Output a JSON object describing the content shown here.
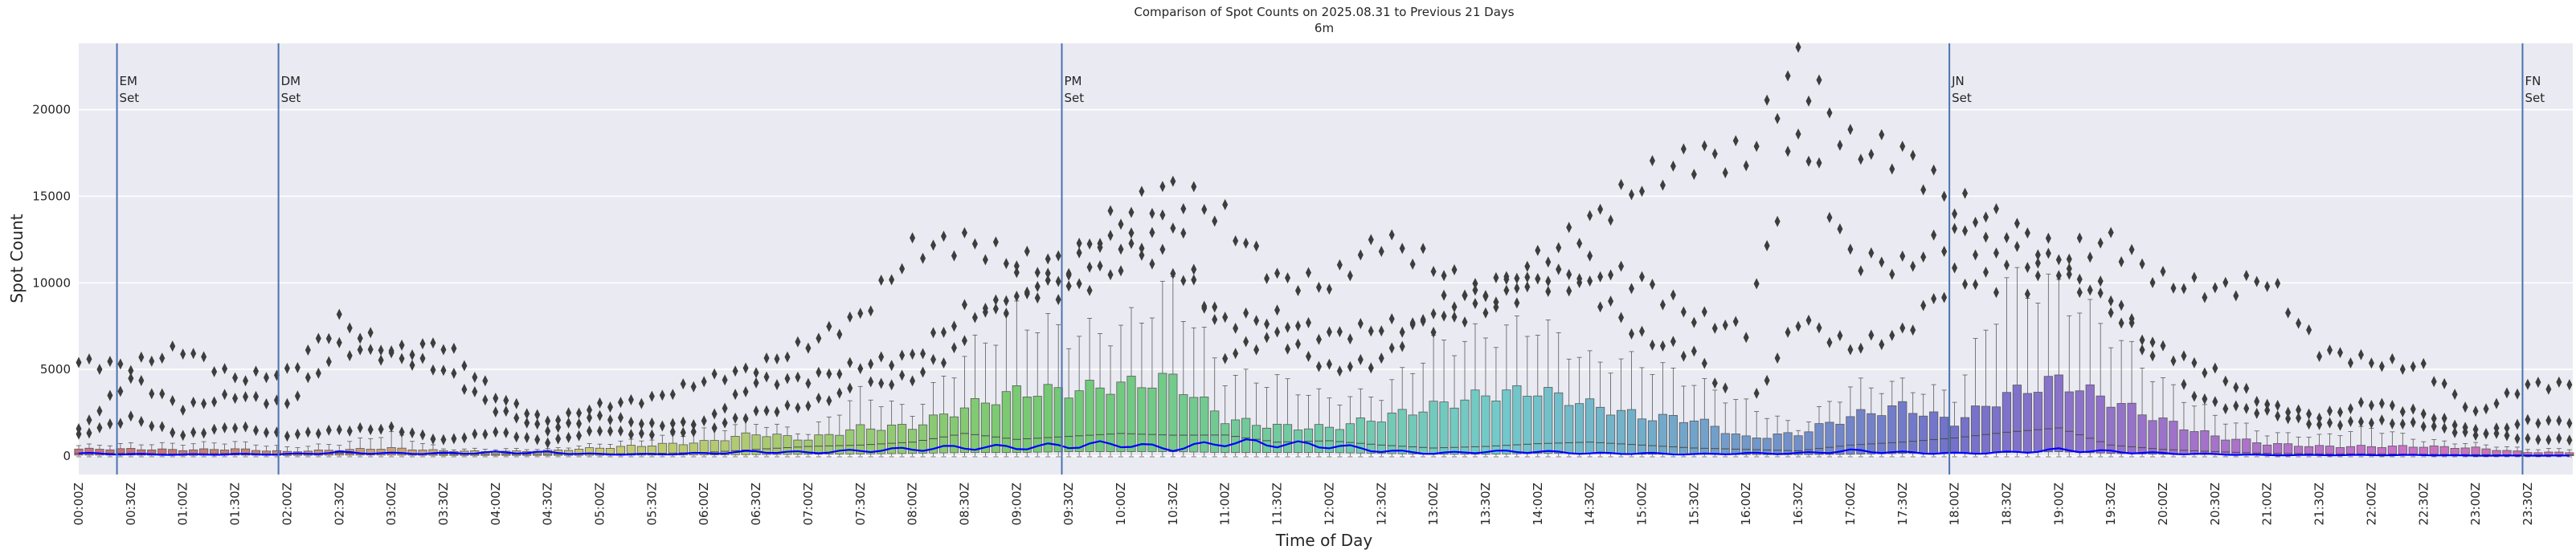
{
  "chart_data": {
    "type": "box",
    "title": "Comparison of Spot Counts on 2025.08.31 to Previous 21 Days",
    "subtitle": "6m",
    "xlabel": "Time of Day",
    "ylabel": "Spot Count",
    "ylim": [
      -1070,
      23830
    ],
    "y_ticks": [
      0,
      5000,
      10000,
      15000,
      20000
    ],
    "y_tick_labels": [
      "0",
      "5000",
      "10000",
      "15000",
      "20000"
    ],
    "bin_minutes": 6,
    "grid": "horizontal",
    "background": "#eaeaf2",
    "palette": "husl",
    "today_line_color": "#0000ff",
    "vline_color": "#4c72b0",
    "outlier_color": "#3d3d3d",
    "x_ticks": [
      "00:00Z",
      "00:30Z",
      "01:00Z",
      "01:30Z",
      "02:00Z",
      "02:30Z",
      "03:00Z",
      "03:30Z",
      "04:00Z",
      "04:30Z",
      "05:00Z",
      "05:30Z",
      "06:00Z",
      "06:30Z",
      "07:00Z",
      "07:30Z",
      "08:00Z",
      "08:30Z",
      "09:00Z",
      "09:30Z",
      "10:00Z",
      "10:30Z",
      "11:00Z",
      "11:30Z",
      "12:00Z",
      "12:30Z",
      "13:00Z",
      "13:30Z",
      "14:00Z",
      "14:30Z",
      "15:00Z",
      "15:30Z",
      "16:00Z",
      "16:30Z",
      "17:00Z",
      "17:30Z",
      "18:00Z",
      "18:30Z",
      "19:00Z",
      "19:30Z",
      "20:00Z",
      "20:30Z",
      "21:00Z",
      "21:30Z",
      "22:00Z",
      "22:30Z",
      "23:00Z",
      "23:30Z"
    ],
    "vlines": [
      {
        "at": "00:22Z",
        "label": [
          "EM",
          "Set"
        ]
      },
      {
        "at": "01:55Z",
        "label": [
          "DM",
          "Set"
        ]
      },
      {
        "at": "09:26Z",
        "label": [
          "PM",
          "Set"
        ]
      },
      {
        "at": "17:57Z",
        "label": [
          "JN",
          "Set"
        ]
      },
      {
        "at": "23:27Z",
        "label": [
          "FN",
          "Set"
        ]
      }
    ],
    "stats": [
      {
        "time": "00:00Z",
        "q1": 50,
        "median": 150,
        "q3": 400,
        "whisker_high": 600,
        "outliers": [
          5400,
          1500,
          1200
        ],
        "today": 150
      },
      {
        "time": "00:30Z",
        "q1": 50,
        "median": 150,
        "q3": 400,
        "whisker_high": 700,
        "outliers": [
          5200,
          4500,
          2200
        ],
        "today": 100
      },
      {
        "time": "01:00Z",
        "q1": 30,
        "median": 100,
        "q3": 350,
        "whisker_high": 700,
        "outliers": [
          6200,
          2800,
          1200
        ],
        "today": 80
      },
      {
        "time": "01:30Z",
        "q1": 50,
        "median": 150,
        "q3": 400,
        "whisker_high": 800,
        "outliers": [
          4500,
          3500,
          1700
        ],
        "today": 100
      },
      {
        "time": "02:00Z",
        "q1": 30,
        "median": 100,
        "q3": 250,
        "whisker_high": 500,
        "outliers": [
          4800,
          3000,
          1200
        ],
        "today": 100
      },
      {
        "time": "02:30Z",
        "q1": 50,
        "median": 150,
        "q3": 350,
        "whisker_high": 700,
        "outliers": [
          7800,
          6200,
          1500
        ],
        "today": 200
      },
      {
        "time": "03:00Z",
        "q1": 50,
        "median": 150,
        "q3": 450,
        "whisker_high": 1300,
        "outliers": [
          6000,
          5800,
          1600
        ],
        "today": 150
      },
      {
        "time": "03:30Z",
        "q1": 30,
        "median": 100,
        "q3": 300,
        "whisker_high": 400,
        "outliers": [
          6500,
          5000,
          900
        ],
        "today": 150
      },
      {
        "time": "04:00Z",
        "q1": 30,
        "median": 100,
        "q3": 250,
        "whisker_high": 400,
        "outliers": [
          3500,
          2700,
          1400
        ],
        "today": 200
      },
      {
        "time": "04:30Z",
        "q1": 30,
        "median": 100,
        "q3": 300,
        "whisker_high": 400,
        "outliers": [
          2000,
          1500,
          800
        ],
        "today": 200
      },
      {
        "time": "05:00Z",
        "q1": 40,
        "median": 120,
        "q3": 460,
        "whisker_high": 700,
        "outliers": [
          2900,
          2300,
          1500
        ],
        "today": 100
      },
      {
        "time": "05:30Z",
        "q1": 50,
        "median": 150,
        "q3": 630,
        "whisker_high": 1000,
        "outliers": [
          3300,
          1800,
          1200
        ],
        "today": 100
      },
      {
        "time": "06:00Z",
        "q1": 60,
        "median": 200,
        "q3": 800,
        "whisker_high": 1450,
        "outliers": [
          4350,
          1950,
          1500
        ],
        "today": 150
      },
      {
        "time": "06:30Z",
        "q1": 80,
        "median": 380,
        "q3": 1300,
        "whisker_high": 1950,
        "outliers": [
          5100,
          4300,
          2500
        ],
        "today": 250
      },
      {
        "time": "07:00Z",
        "q1": 100,
        "median": 550,
        "q3": 960,
        "whisker_high": 1300,
        "outliers": [
          6500,
          4450,
          2950
        ],
        "today": 200
      },
      {
        "time": "07:30Z",
        "q1": 120,
        "median": 630,
        "q3": 1620,
        "whisker_high": 3600,
        "outliers": [
          8100,
          5250,
          4000
        ],
        "today": 300
      },
      {
        "time": "08:00Z",
        "q1": 150,
        "median": 800,
        "q3": 1700,
        "whisker_high": 2530,
        "outliers": [
          11900,
          5760,
          4500
        ],
        "today": 400
      },
      {
        "time": "08:30Z",
        "q1": 200,
        "median": 1300,
        "q3": 2780,
        "whisker_high": 5760,
        "outliers": [
          12400,
          8250,
          6500
        ],
        "today": 500
      },
      {
        "time": "09:00Z",
        "q1": 200,
        "median": 960,
        "q3": 3700,
        "whisker_high": 8160,
        "outliers": [
          11200,
          8900,
          10000
        ],
        "today": 500
      },
      {
        "time": "09:30Z",
        "q1": 250,
        "median": 1130,
        "q3": 3780,
        "whisker_high": 7000,
        "outliers": [
          11200,
          10700,
          9500
        ],
        "today": 600
      },
      {
        "time": "10:00Z",
        "q1": 250,
        "median": 1300,
        "q3": 4100,
        "whisker_high": 7250,
        "outliers": [
          13900,
          12700,
          11000
        ],
        "today": 700
      },
      {
        "time": "10:30Z",
        "q1": 250,
        "median": 1200,
        "q3": 4440,
        "whisker_high": 9740,
        "outliers": [
          15500,
          10900,
          14000
        ],
        "today": 400
      },
      {
        "time": "11:00Z",
        "q1": 200,
        "median": 1210,
        "q3": 2120,
        "whisker_high": 4600,
        "outliers": [
          13700,
          7800,
          5800
        ],
        "today": 800
      },
      {
        "time": "11:30Z",
        "q1": 200,
        "median": 800,
        "q3": 1700,
        "whisker_high": 4350,
        "outliers": [
          10200,
          7950,
          6950
        ],
        "today": 700
      },
      {
        "time": "12:00Z",
        "q1": 200,
        "median": 880,
        "q3": 1620,
        "whisker_high": 3270,
        "outliers": [
          9900,
          6950,
          5000
        ],
        "today": 600
      },
      {
        "time": "12:30Z",
        "q1": 150,
        "median": 630,
        "q3": 2200,
        "whisker_high": 3600,
        "outliers": [
          12570,
          7450,
          5500
        ],
        "today": 300
      },
      {
        "time": "13:00Z",
        "q1": 100,
        "median": 460,
        "q3": 2860,
        "whisker_high": 6300,
        "outliers": [
          11000,
          7600,
          8500
        ],
        "today": 150
      },
      {
        "time": "13:30Z",
        "q1": 100,
        "median": 550,
        "q3": 3540,
        "whisker_high": 6950,
        "outliers": [
          9000,
          8500,
          9800
        ],
        "today": 250
      },
      {
        "time": "14:00Z",
        "q1": 150,
        "median": 710,
        "q3": 3780,
        "whisker_high": 7600,
        "outliers": [
          11200,
          9900,
          10500
        ],
        "today": 250
      },
      {
        "time": "14:30Z",
        "q1": 150,
        "median": 800,
        "q3": 2950,
        "whisker_high": 5430,
        "outliers": [
          13500,
          10900,
          9750
        ],
        "today": 150
      },
      {
        "time": "15:00Z",
        "q1": 100,
        "median": 630,
        "q3": 2280,
        "whisker_high": 5430,
        "outliers": [
          15800,
          10100,
          6800
        ],
        "today": 150
      },
      {
        "time": "15:30Z",
        "q1": 100,
        "median": 460,
        "q3": 2120,
        "whisker_high": 4270,
        "outliers": [
          17300,
          8000,
          5930
        ],
        "today": 100
      },
      {
        "time": "16:00Z",
        "q1": 80,
        "median": 380,
        "q3": 1040,
        "whisker_high": 2950,
        "outliers": [
          17200,
          7280,
          2280
        ],
        "today": 150
      },
      {
        "time": "16:30Z",
        "q1": 80,
        "median": 300,
        "q3": 1290,
        "whisker_high": 1620,
        "outliers": [
          22800,
          19000,
          7950
        ],
        "today": 150
      },
      {
        "time": "17:00Z",
        "q1": 100,
        "median": 630,
        "q3": 2280,
        "whisker_high": 4000,
        "outliers": [
          17800,
          11500,
          6250
        ],
        "today": 300
      },
      {
        "time": "17:30Z",
        "q1": 150,
        "median": 800,
        "q3": 2860,
        "whisker_high": 4100,
        "outliers": [
          17500,
          10900,
          7100
        ],
        "today": 200
      },
      {
        "time": "18:00Z",
        "q1": 150,
        "median": 1040,
        "q3": 1950,
        "whisker_high": 3500,
        "outliers": [
          14540,
          12900,
          10270
        ],
        "today": 150
      },
      {
        "time": "18:30Z",
        "q1": 200,
        "median": 1370,
        "q3": 3530,
        "whisker_high": 9900,
        "outliers": [
          13400,
          11500,
          9900
        ],
        "today": 200
      },
      {
        "time": "19:00Z",
        "q1": 250,
        "median": 1620,
        "q3": 4390,
        "whisker_high": 9570,
        "outliers": [
          11550,
          11060,
          10000
        ],
        "today": 350
      },
      {
        "time": "19:30Z",
        "q1": 150,
        "median": 630,
        "q3": 3200,
        "whisker_high": 7100,
        "outliers": [
          12400,
          8400,
          9500
        ],
        "today": 250
      },
      {
        "time": "20:00Z",
        "q1": 100,
        "median": 380,
        "q3": 2040,
        "whisker_high": 4190,
        "outliers": [
          10070,
          6100,
          4500
        ],
        "today": 150
      },
      {
        "time": "20:30Z",
        "q1": 80,
        "median": 250,
        "q3": 1130,
        "whisker_high": 2290,
        "outliers": [
          9570,
          4800,
          3000
        ],
        "today": 100
      },
      {
        "time": "21:00Z",
        "q1": 50,
        "median": 150,
        "q3": 710,
        "whisker_high": 1300,
        "outliers": [
          10230,
          2950,
          2500
        ],
        "today": 50
      },
      {
        "time": "21:30Z",
        "q1": 50,
        "median": 120,
        "q3": 550,
        "whisker_high": 1130,
        "outliers": [
          6100,
          2290,
          1800
        ],
        "today": 50
      },
      {
        "time": "22:00Z",
        "q1": 50,
        "median": 120,
        "q3": 550,
        "whisker_high": 1620,
        "outliers": [
          5430,
          3100,
          2000
        ],
        "today": 50
      },
      {
        "time": "22:30Z",
        "q1": 40,
        "median": 100,
        "q3": 550,
        "whisker_high": 900,
        "outliers": [
          5100,
          2450,
          1800
        ],
        "today": 50
      },
      {
        "time": "23:00Z",
        "q1": 30,
        "median": 80,
        "q3": 460,
        "whisker_high": 700,
        "outliers": [
          2450,
          1460,
          1200
        ],
        "today": 20
      },
      {
        "time": "23:30Z",
        "q1": 20,
        "median": 60,
        "q3": 210,
        "whisker_high": 400,
        "outliers": [
          4100,
          960,
          2000
        ],
        "today": 20
      }
    ]
  }
}
